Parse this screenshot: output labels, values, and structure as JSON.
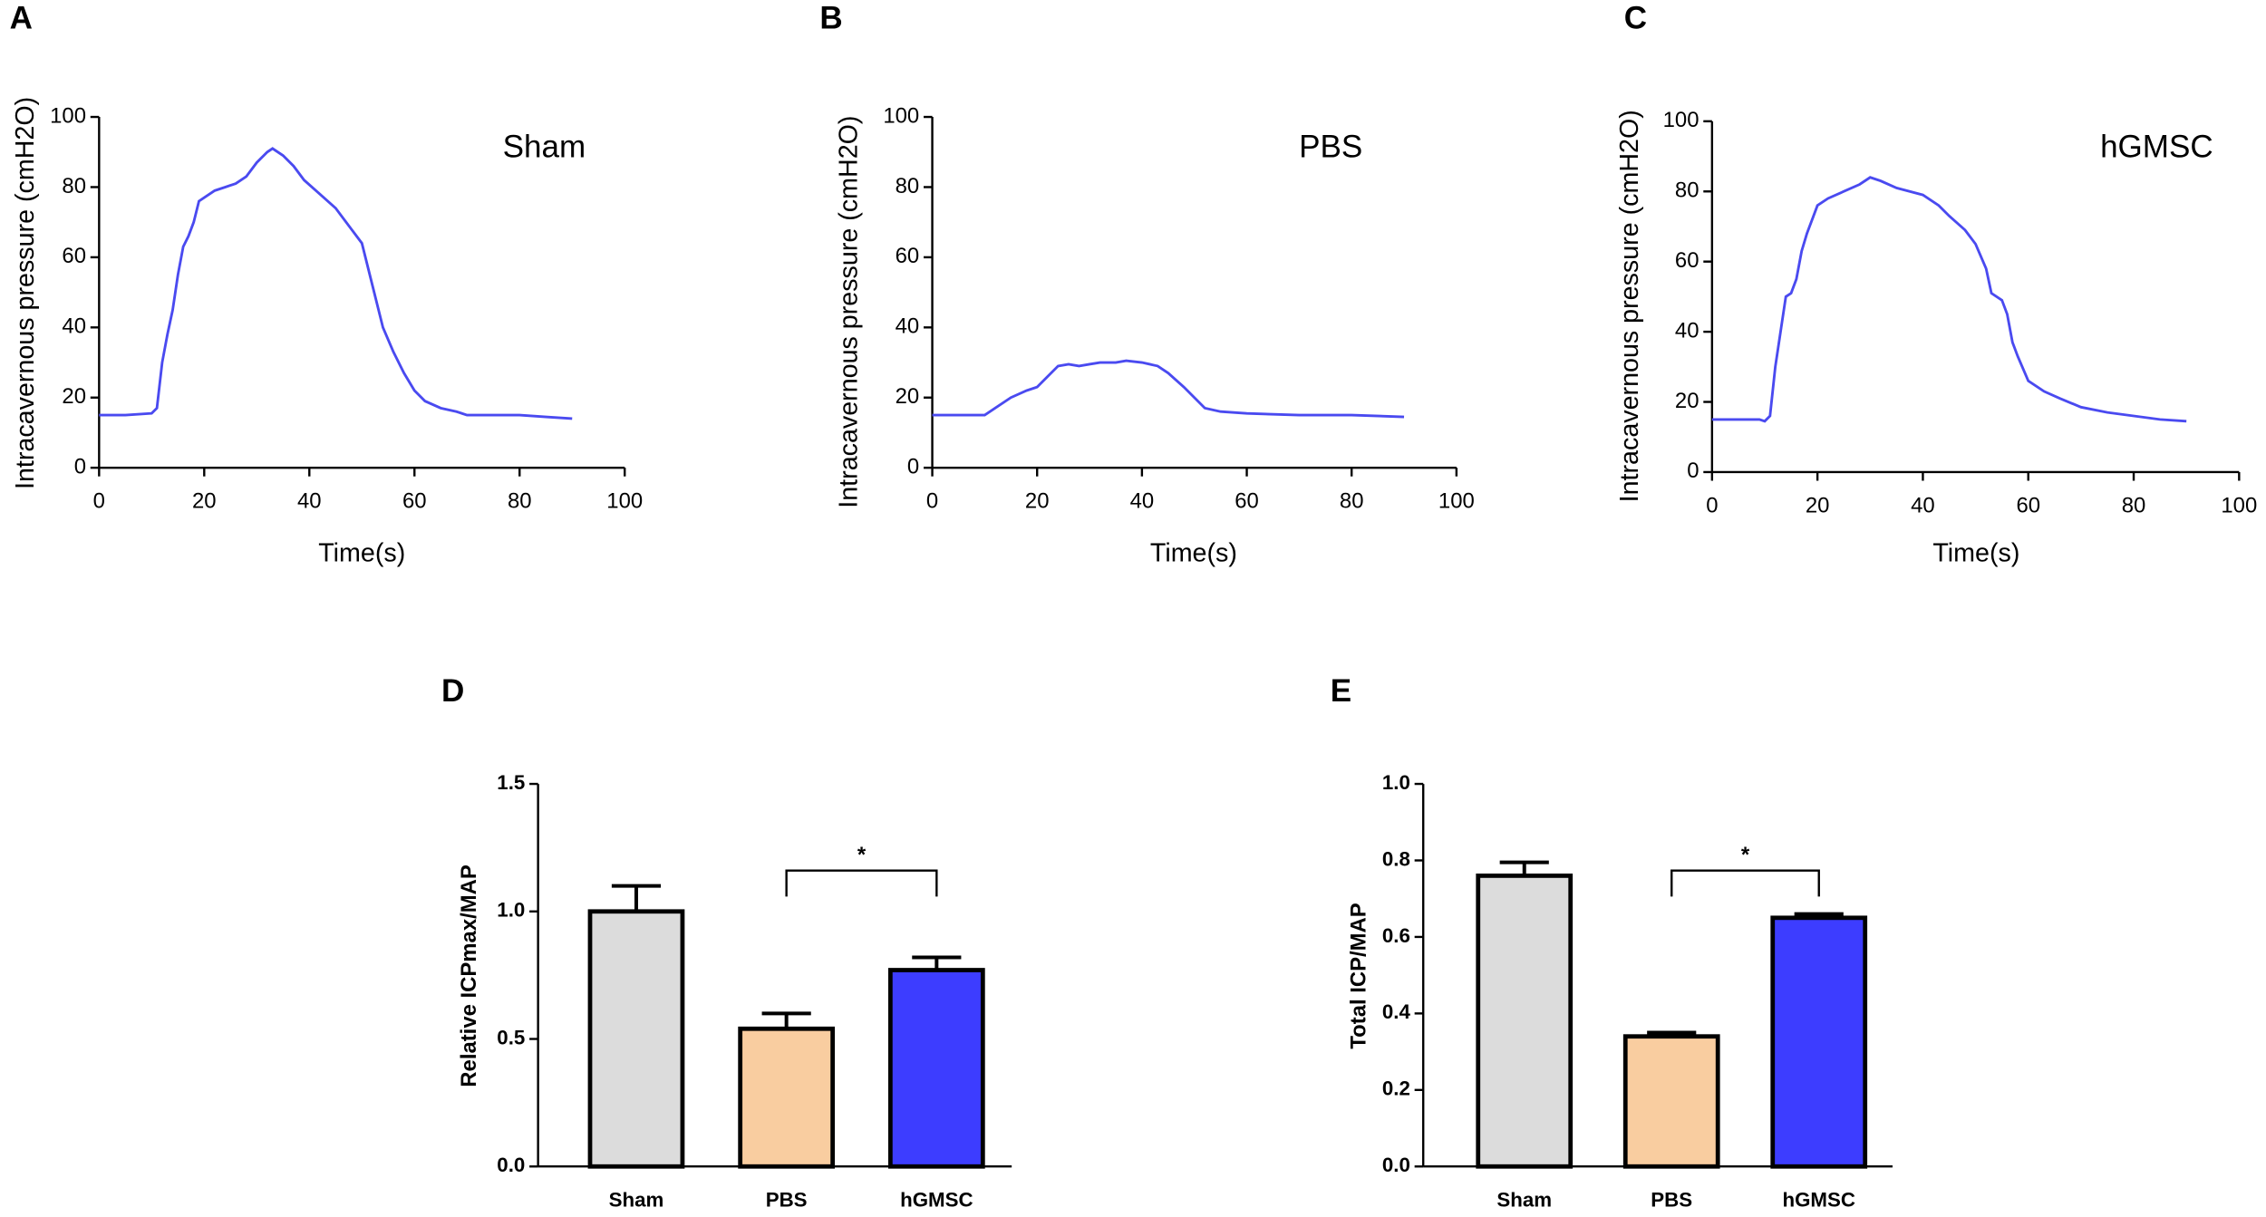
{
  "chart_data": [
    {
      "type": "line",
      "panel": "A",
      "title": "Sham",
      "xlabel": "Time(s)",
      "ylabel": "Intracavernous pressure (cmH2O)",
      "color": "#4a4af0",
      "x": [
        0,
        5,
        10,
        11,
        12,
        13,
        14,
        15,
        16,
        17,
        18,
        19,
        20,
        22,
        24,
        26,
        28,
        30,
        32,
        33,
        35,
        37,
        39,
        42,
        45,
        48,
        50,
        52,
        54,
        56,
        58,
        60,
        62,
        65,
        68,
        70,
        75,
        80,
        85,
        90
      ],
      "values": [
        15,
        15,
        15.5,
        17,
        30,
        38,
        45,
        55,
        63,
        66,
        70,
        76,
        77,
        79,
        80,
        81,
        83,
        87,
        90,
        91,
        89,
        86,
        82,
        78,
        74,
        68,
        64,
        52,
        40,
        33,
        27,
        22,
        19,
        17,
        16,
        15,
        15,
        15,
        14.5,
        14
      ],
      "xlim": [
        0,
        100
      ],
      "ylim": [
        0,
        100
      ],
      "xticks": [
        0,
        20,
        40,
        60,
        80,
        100
      ],
      "yticks": [
        0,
        20,
        40,
        60,
        80,
        100
      ]
    },
    {
      "type": "line",
      "panel": "B",
      "title": "PBS",
      "xlabel": "Time(s)",
      "ylabel": "Intracavernous pressure (cmH2O)",
      "color": "#4a4af0",
      "x": [
        0,
        5,
        10,
        12,
        15,
        18,
        20,
        22,
        24,
        26,
        28,
        30,
        32,
        35,
        37,
        40,
        43,
        45,
        48,
        50,
        52,
        55,
        60,
        70,
        80,
        90
      ],
      "values": [
        15,
        15,
        15,
        17,
        20,
        22,
        23,
        26,
        29,
        29.5,
        29,
        29.5,
        30,
        30,
        30.5,
        30,
        29,
        27,
        23,
        20,
        17,
        16,
        15.5,
        15,
        15,
        14.5
      ],
      "xlim": [
        0,
        100
      ],
      "ylim": [
        0,
        100
      ],
      "xticks": [
        0,
        20,
        40,
        60,
        80,
        100
      ],
      "yticks": [
        0,
        20,
        40,
        60,
        80,
        100
      ]
    },
    {
      "type": "line",
      "panel": "C",
      "title": "hGMSC",
      "xlabel": "Time(s)",
      "ylabel": "Intracavernous pressure (cmH2O)",
      "color": "#4a4af0",
      "x": [
        0,
        5,
        9,
        10,
        11,
        12,
        13,
        14,
        15,
        16,
        17,
        18,
        19,
        20,
        22,
        25,
        28,
        30,
        32,
        35,
        40,
        43,
        45,
        48,
        50,
        52,
        53,
        55,
        56,
        57,
        58,
        60,
        63,
        66,
        70,
        75,
        80,
        85,
        90
      ],
      "values": [
        15,
        15,
        15,
        14.5,
        16,
        30,
        40,
        50,
        51,
        55,
        63,
        68,
        72,
        76,
        78,
        80,
        82,
        84,
        83,
        81,
        79,
        76,
        73,
        69,
        65,
        58,
        51,
        49,
        45,
        37,
        33,
        26,
        23,
        21,
        18.5,
        17,
        16,
        15,
        14.5
      ],
      "xlim": [
        0,
        100
      ],
      "ylim": [
        0,
        100
      ],
      "xticks": [
        0,
        20,
        40,
        60,
        80,
        100
      ],
      "yticks": [
        0,
        20,
        40,
        60,
        80,
        100
      ]
    },
    {
      "type": "bar",
      "panel": "D",
      "ylabel": "Relative ICPmax/MAP",
      "categories": [
        "Sham",
        "PBS",
        "hGMSC"
      ],
      "values": [
        1.0,
        0.54,
        0.77
      ],
      "errors": [
        0.1,
        0.06,
        0.05
      ],
      "colors": [
        "#dcdcdc",
        "#f9cda0",
        "#3d3dff"
      ],
      "ylim": [
        0,
        1.5
      ],
      "yticks": [
        {
          "value": 0,
          "label": "0.0"
        },
        0.5,
        {
          "value": 1,
          "label": "1.0"
        },
        1.5
      ],
      "significance": {
        "label": "*",
        "groups": [
          "PBS",
          "hGMSC"
        ]
      }
    },
    {
      "type": "bar",
      "panel": "E",
      "ylabel": "Total ICP/MAP",
      "categories": [
        "Sham",
        "PBS",
        "hGMSC"
      ],
      "values": [
        0.76,
        0.34,
        0.65
      ],
      "errors": [
        0.035,
        0.01,
        0.01
      ],
      "colors": [
        "#dcdcdc",
        "#f9cda0",
        "#3d3dff"
      ],
      "ylim": [
        0,
        1
      ],
      "yticks": [
        {
          "value": 0,
          "label": "0.0"
        },
        0.2,
        0.4,
        0.6,
        0.8,
        {
          "value": 1,
          "label": "1.0"
        }
      ],
      "significance": {
        "label": "*",
        "groups": [
          "PBS",
          "hGMSC"
        ]
      }
    }
  ]
}
